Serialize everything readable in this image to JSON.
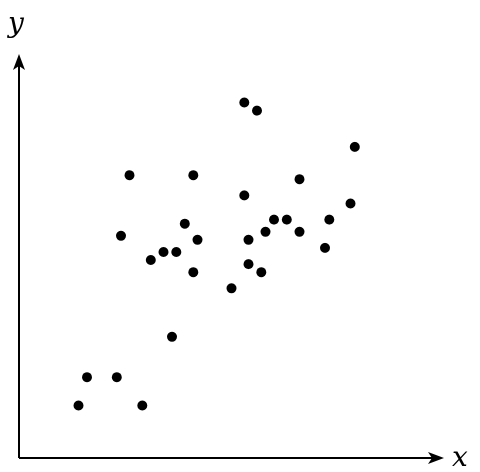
{
  "chart_data": {
    "type": "scatter",
    "xlabel": "x",
    "ylabel": "y",
    "title": "",
    "grid": false,
    "ticks": false,
    "xlim": [
      0,
      100
    ],
    "ylim": [
      0,
      100
    ],
    "marker_color": "#000000",
    "points": [
      {
        "x": 14,
        "y": 13
      },
      {
        "x": 16,
        "y": 20
      },
      {
        "x": 23,
        "y": 20
      },
      {
        "x": 29,
        "y": 13
      },
      {
        "x": 24,
        "y": 55
      },
      {
        "x": 26,
        "y": 70
      },
      {
        "x": 31,
        "y": 49
      },
      {
        "x": 34,
        "y": 51
      },
      {
        "x": 36,
        "y": 30
      },
      {
        "x": 37,
        "y": 51
      },
      {
        "x": 39,
        "y": 58
      },
      {
        "x": 41,
        "y": 46
      },
      {
        "x": 41,
        "y": 70
      },
      {
        "x": 42,
        "y": 54
      },
      {
        "x": 50,
        "y": 42
      },
      {
        "x": 53,
        "y": 65
      },
      {
        "x": 53,
        "y": 88
      },
      {
        "x": 54,
        "y": 54
      },
      {
        "x": 54,
        "y": 48
      },
      {
        "x": 56,
        "y": 86
      },
      {
        "x": 57,
        "y": 46
      },
      {
        "x": 58,
        "y": 56
      },
      {
        "x": 60,
        "y": 59
      },
      {
        "x": 63,
        "y": 59
      },
      {
        "x": 66,
        "y": 56
      },
      {
        "x": 66,
        "y": 69
      },
      {
        "x": 72,
        "y": 52
      },
      {
        "x": 73,
        "y": 59
      },
      {
        "x": 78,
        "y": 63
      },
      {
        "x": 79,
        "y": 77
      }
    ]
  }
}
